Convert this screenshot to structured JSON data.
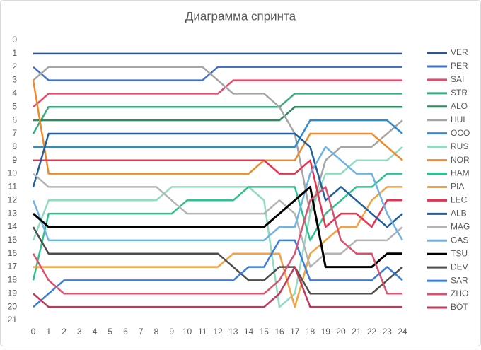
{
  "chart_data": {
    "type": "line",
    "title": "Диаграмма спринта",
    "x": [
      0,
      1,
      2,
      3,
      4,
      5,
      6,
      7,
      8,
      9,
      10,
      11,
      12,
      13,
      14,
      15,
      16,
      17,
      18,
      19,
      20,
      21,
      22,
      23,
      24
    ],
    "xlim": [
      0,
      24
    ],
    "xticks": [
      0,
      1,
      2,
      3,
      4,
      5,
      6,
      7,
      8,
      9,
      10,
      11,
      12,
      13,
      14,
      15,
      16,
      17,
      18,
      19,
      20,
      21,
      22,
      23,
      24
    ],
    "ylim": [
      21,
      0
    ],
    "yticks": [
      0,
      1,
      2,
      3,
      4,
      5,
      6,
      7,
      8,
      9,
      10,
      11,
      12,
      13,
      14,
      15,
      16,
      17,
      18,
      19,
      20,
      21
    ],
    "legend": "right",
    "series": [
      {
        "name": "VER",
        "color": "#2f5597",
        "values": [
          1,
          1,
          1,
          1,
          1,
          1,
          1,
          1,
          1,
          1,
          1,
          1,
          1,
          1,
          1,
          1,
          1,
          1,
          1,
          1,
          1,
          1,
          1,
          1,
          1
        ]
      },
      {
        "name": "PER",
        "color": "#4472c4",
        "values": [
          2,
          3,
          3,
          3,
          3,
          3,
          3,
          3,
          3,
          3,
          3,
          3,
          2,
          2,
          2,
          2,
          2,
          2,
          2,
          2,
          2,
          2,
          2,
          2,
          2
        ]
      },
      {
        "name": "SAI",
        "color": "#e8496b",
        "values": [
          5,
          4,
          4,
          4,
          4,
          4,
          4,
          4,
          4,
          4,
          4,
          4,
          4,
          3,
          3,
          3,
          3,
          3,
          3,
          3,
          3,
          3,
          3,
          3,
          3
        ]
      },
      {
        "name": "STR",
        "color": "#3aaa7f",
        "values": [
          7,
          5,
          5,
          5,
          5,
          5,
          5,
          5,
          5,
          5,
          5,
          5,
          5,
          5,
          5,
          5,
          5,
          4,
          4,
          4,
          4,
          4,
          4,
          4,
          4
        ]
      },
      {
        "name": "ALO",
        "color": "#2e8b5e",
        "values": [
          6,
          6,
          6,
          6,
          6,
          6,
          6,
          6,
          6,
          6,
          6,
          6,
          6,
          6,
          6,
          6,
          6,
          5,
          5,
          5,
          5,
          5,
          5,
          5,
          5
        ]
      },
      {
        "name": "HUL",
        "color": "#a5a5a5",
        "values": [
          3,
          2,
          2,
          2,
          2,
          2,
          2,
          2,
          2,
          2,
          2,
          2,
          3,
          4,
          4,
          4,
          5,
          7,
          13,
          9,
          8,
          8,
          8,
          7,
          6
        ]
      },
      {
        "name": "OCO",
        "color": "#2e8bd0",
        "values": [
          8,
          8,
          8,
          8,
          8,
          8,
          8,
          8,
          8,
          8,
          8,
          8,
          8,
          8,
          8,
          8,
          8,
          8,
          6,
          6,
          6,
          6,
          6,
          6,
          7
        ]
      },
      {
        "name": "RUS",
        "color": "#8fdcc0",
        "values": [
          15,
          12,
          12,
          12,
          12,
          12,
          12,
          12,
          12,
          11,
          11,
          11,
          11,
          11,
          11,
          12,
          20,
          19,
          13,
          10,
          10,
          9,
          9,
          9,
          8
        ]
      },
      {
        "name": "NOR",
        "color": "#ed8b2c",
        "values": [
          3,
          10,
          10,
          10,
          10,
          10,
          10,
          10,
          10,
          10,
          10,
          10,
          10,
          10,
          10,
          9,
          9,
          9,
          7,
          7,
          7,
          7,
          7,
          8,
          9
        ]
      },
      {
        "name": "HAM",
        "color": "#2ec08f",
        "values": [
          18,
          13,
          13,
          13,
          13,
          13,
          13,
          13,
          13,
          13,
          12,
          12,
          12,
          12,
          11,
          11,
          11,
          11,
          15,
          13,
          12,
          11,
          11,
          10,
          10
        ]
      },
      {
        "name": "PIA",
        "color": "#f4a142",
        "values": [
          17,
          17,
          17,
          17,
          17,
          17,
          17,
          17,
          17,
          17,
          17,
          17,
          17,
          16,
          16,
          16,
          16,
          20,
          16,
          15,
          14,
          14,
          12,
          11,
          11
        ]
      },
      {
        "name": "LEC",
        "color": "#e8304f",
        "values": [
          9,
          9,
          9,
          9,
          9,
          9,
          9,
          9,
          9,
          9,
          9,
          9,
          9,
          9,
          9,
          9,
          10,
          10,
          9,
          14,
          13,
          13,
          14,
          12,
          12
        ]
      },
      {
        "name": "ALB",
        "color": "#1f5fa0",
        "values": [
          11,
          7,
          7,
          7,
          7,
          7,
          7,
          7,
          7,
          7,
          7,
          7,
          7,
          7,
          7,
          7,
          7,
          7,
          8,
          12,
          11,
          12,
          13,
          14,
          13
        ]
      },
      {
        "name": "MAG",
        "color": "#b4b4b4",
        "values": [
          10,
          11,
          11,
          11,
          11,
          11,
          11,
          11,
          11,
          12,
          13,
          13,
          13,
          13,
          13,
          13,
          12,
          13,
          17,
          16,
          16,
          15,
          15,
          15,
          14
        ]
      },
      {
        "name": "GAS",
        "color": "#6fb3e6",
        "values": [
          12,
          15,
          15,
          15,
          15,
          15,
          15,
          15,
          15,
          15,
          15,
          15,
          15,
          15,
          15,
          15,
          14,
          14,
          10,
          8,
          9,
          10,
          10,
          13,
          15
        ]
      },
      {
        "name": "TSU",
        "color": "#000000",
        "values": [
          13,
          14,
          14,
          14,
          14,
          14,
          14,
          14,
          14,
          14,
          14,
          14,
          14,
          14,
          14,
          14,
          13,
          12,
          11,
          17,
          17,
          17,
          17,
          16,
          16
        ]
      },
      {
        "name": "DEV",
        "color": "#4d4d4d",
        "values": [
          14,
          16,
          16,
          16,
          16,
          16,
          16,
          16,
          16,
          16,
          16,
          16,
          16,
          17,
          18,
          18,
          17,
          17,
          19,
          19,
          19,
          19,
          19,
          18,
          17
        ]
      },
      {
        "name": "SAR",
        "color": "#3b7ddd",
        "values": [
          20,
          19,
          18,
          18,
          18,
          18,
          18,
          18,
          18,
          18,
          18,
          18,
          18,
          18,
          17,
          17,
          15,
          15,
          18,
          18,
          18,
          18,
          18,
          17,
          18
        ]
      },
      {
        "name": "ZHO",
        "color": "#d9536e",
        "values": [
          16,
          18,
          19,
          19,
          19,
          19,
          19,
          19,
          19,
          19,
          19,
          19,
          19,
          19,
          19,
          19,
          18,
          16,
          12,
          11,
          15,
          16,
          16,
          19,
          19
        ]
      },
      {
        "name": "BOT",
        "color": "#c0395a",
        "values": [
          19,
          20,
          20,
          20,
          20,
          20,
          20,
          20,
          20,
          20,
          20,
          20,
          20,
          20,
          20,
          20,
          19,
          17,
          20,
          20,
          20,
          20,
          20,
          20,
          20
        ]
      }
    ]
  }
}
